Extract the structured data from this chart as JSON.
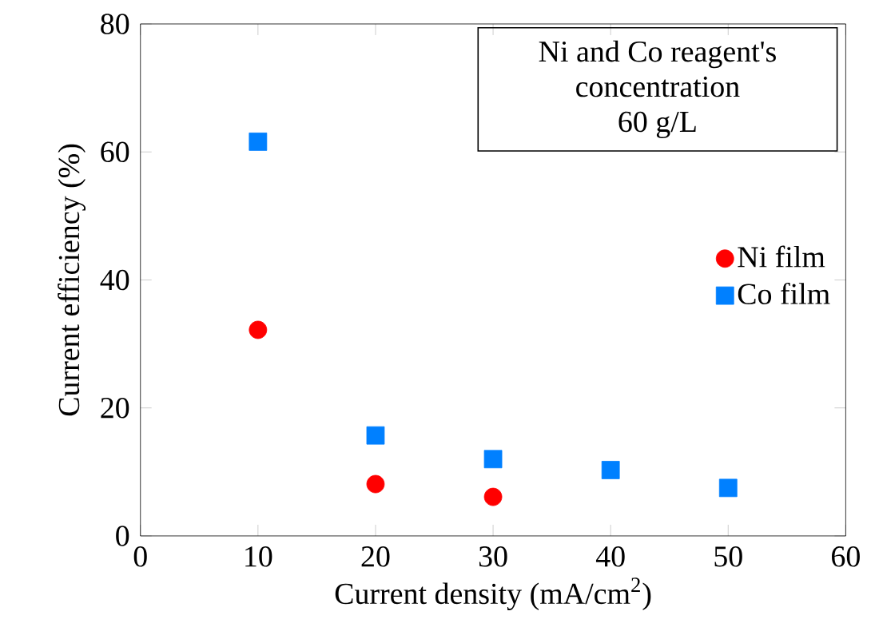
{
  "chart_data": {
    "type": "scatter",
    "xlabel": "Current density (mA/cm$^{2}$)",
    "ylabel": "Current efficiency (%)",
    "annotations": [
      "Ni and Co reagent's",
      "concentration",
      "60 g/L"
    ],
    "xlim": [
      0,
      60
    ],
    "xticks": [
      0,
      10,
      20,
      30,
      40,
      50,
      60
    ],
    "ylim": [
      0,
      80
    ],
    "yticks": [
      0,
      20,
      40,
      60,
      80
    ],
    "legend": "right",
    "grid": false,
    "series": [
      {
        "name": "Ni film",
        "color": "#ff0000",
        "marker": "circle",
        "x": [
          10,
          20,
          30
        ],
        "values": [
          32.2,
          8.1,
          6.1
        ]
      },
      {
        "name": "Co film",
        "color": "#0080ff",
        "marker": "square",
        "x": [
          10,
          20,
          30,
          40,
          50
        ],
        "values": [
          61.6,
          15.7,
          12,
          10.3,
          7.5
        ]
      }
    ]
  }
}
